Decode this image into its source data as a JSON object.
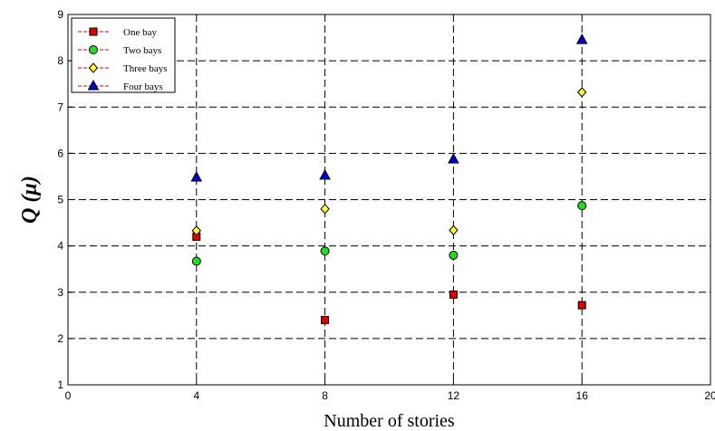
{
  "chart_data": {
    "type": "scatter",
    "xlabel": "Number of stories",
    "ylabel": "Q (μ)",
    "xlim": [
      0,
      20
    ],
    "ylim": [
      1,
      9
    ],
    "xticks": [
      "0",
      "4",
      "8",
      "12",
      "16",
      "20"
    ],
    "yticks": [
      "1",
      "2",
      "3",
      "4",
      "5",
      "6",
      "7",
      "8",
      "9"
    ],
    "grid": true,
    "legend_position": "top-left",
    "x": [
      4,
      8,
      12,
      16
    ],
    "series": [
      {
        "name": "One bay",
        "values": [
          4.2,
          2.4,
          2.95,
          2.72
        ],
        "marker": "square",
        "color": "#e00000",
        "line_color": "#e00000"
      },
      {
        "name": "Two bays",
        "values": [
          3.67,
          3.89,
          3.8,
          4.87
        ],
        "marker": "circle",
        "color": "#22dd22",
        "line_color": "#e00000"
      },
      {
        "name": "Three bays",
        "values": [
          4.33,
          4.8,
          4.34,
          7.32
        ],
        "marker": "diamond",
        "color": "#ffff33",
        "line_color": "#e00000"
      },
      {
        "name": "Four bays",
        "values": [
          5.48,
          5.52,
          5.87,
          8.45
        ],
        "marker": "triangle",
        "color": "#0000cc",
        "line_color": "#e00000"
      }
    ]
  }
}
